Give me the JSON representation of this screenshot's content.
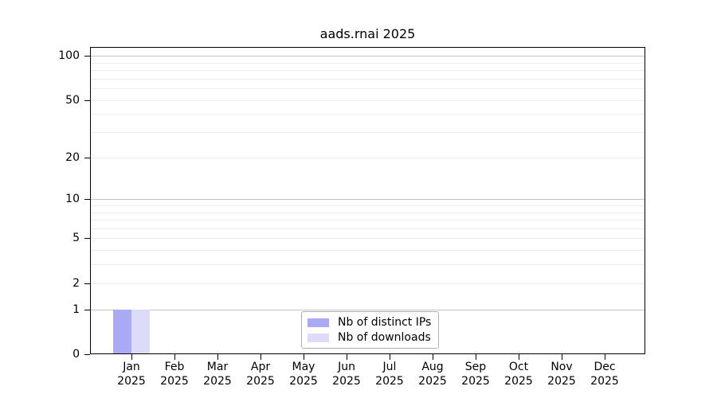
{
  "title": "aads.rnai 2025",
  "colors": {
    "distinct_ips_bar": "#a9a9f4",
    "downloads_bar": "#dcdcf8",
    "major_gridline": "#c4c4c4",
    "minor_gridline": "#ececec",
    "axis": "#000000"
  },
  "legend": {
    "items": [
      {
        "label": "Nb of distinct IPs",
        "color": "#a9a9f4"
      },
      {
        "label": "Nb of downloads",
        "color": "#dcdcf8"
      }
    ]
  },
  "chart_data": {
    "type": "bar",
    "title": "aads.rnai 2025",
    "categories": [
      "Jan",
      "Feb",
      "Mar",
      "Apr",
      "May",
      "Jun",
      "Jul",
      "Aug",
      "Sep",
      "Oct",
      "Nov",
      "Dec"
    ],
    "x_sub_label": "2025",
    "series": [
      {
        "name": "Nb of distinct IPs",
        "color": "#a9a9f4",
        "values": [
          1,
          0,
          0,
          0,
          0,
          0,
          0,
          0,
          0,
          0,
          0,
          0
        ]
      },
      {
        "name": "Nb of downloads",
        "color": "#dcdcf8",
        "values": [
          1,
          0,
          0,
          0,
          0,
          0,
          0,
          0,
          0,
          0,
          0,
          0
        ]
      }
    ],
    "y_tick_labels": [
      "100",
      "50",
      "20",
      "10",
      "5",
      "2",
      "1",
      "0"
    ],
    "y_tick_values": [
      100,
      50,
      20,
      10,
      5,
      2,
      1,
      0
    ],
    "y_major_gridlines": [
      1,
      10,
      100
    ],
    "y_minor_gridlines": [
      2,
      3,
      4,
      5,
      6,
      7,
      8,
      9,
      20,
      30,
      40,
      50,
      60,
      70,
      80,
      90
    ],
    "scale": "log10(1+v)",
    "xlabel": "",
    "ylabel": "",
    "legend_position": "bottom-center",
    "grid": "horizontal"
  }
}
